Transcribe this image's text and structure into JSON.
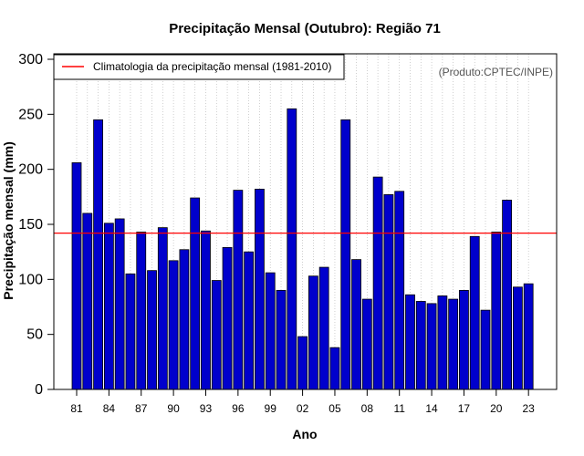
{
  "chart_data": {
    "type": "bar",
    "title": "Precipitação Mensal (Outubro): Região 71",
    "xlabel": "Ano",
    "ylabel": "Precipitação mensal (mm)",
    "source_note": "(Produto:CPTEC/INPE)",
    "ylim": [
      0,
      300
    ],
    "yticks": [
      0,
      50,
      100,
      150,
      200,
      250,
      300
    ],
    "grid": "vertical dotted",
    "years": [
      1981,
      1982,
      1983,
      1984,
      1985,
      1986,
      1987,
      1988,
      1989,
      1990,
      1991,
      1992,
      1993,
      1994,
      1995,
      1996,
      1997,
      1998,
      1999,
      2000,
      2001,
      2002,
      2003,
      2004,
      2005,
      2006,
      2007,
      2008,
      2009,
      2010,
      2011,
      2012,
      2013,
      2014,
      2015,
      2016,
      2017,
      2018,
      2019,
      2020,
      2021,
      2022,
      2023
    ],
    "values": [
      206,
      160,
      245,
      151,
      155,
      105,
      143,
      108,
      147,
      117,
      127,
      174,
      144,
      99,
      129,
      181,
      125,
      182,
      106,
      90,
      255,
      48,
      103,
      111,
      38,
      245,
      118,
      82,
      193,
      177,
      180,
      86,
      80,
      78,
      85,
      82,
      90,
      139,
      72,
      143,
      172,
      93,
      96
    ],
    "xtick_labels": [
      {
        "year": 1981,
        "label": "81"
      },
      {
        "year": 1984,
        "label": "84"
      },
      {
        "year": 1987,
        "label": "87"
      },
      {
        "year": 1990,
        "label": "90"
      },
      {
        "year": 1993,
        "label": "93"
      },
      {
        "year": 1996,
        "label": "96"
      },
      {
        "year": 1999,
        "label": "99"
      },
      {
        "year": 2002,
        "label": "02"
      },
      {
        "year": 2005,
        "label": "05"
      },
      {
        "year": 2008,
        "label": "08"
      },
      {
        "year": 2011,
        "label": "11"
      },
      {
        "year": 2014,
        "label": "14"
      },
      {
        "year": 2017,
        "label": "17"
      },
      {
        "year": 2020,
        "label": "20"
      },
      {
        "year": 2023,
        "label": "23"
      }
    ],
    "climatology": {
      "label": "Climatologia da precipitação mensal (1981-2010)",
      "value": 142
    },
    "legend_position": "top-left",
    "colors": {
      "bar_fill": "#0000CC",
      "bar_stroke": "#000000",
      "climatology_line": "#FF0000",
      "grid": "#BBBBBB"
    }
  }
}
